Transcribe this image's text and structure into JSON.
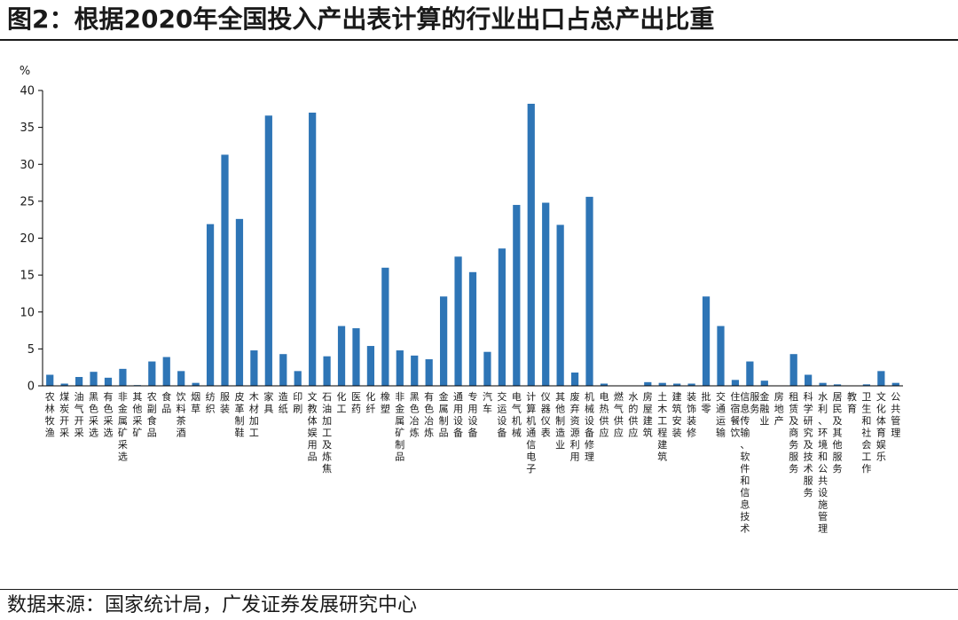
{
  "title": "图2：根据2020年全国投入产出表计算的行业出口占总产出比重",
  "source": "数据来源：国家统计局，广发证券发展研究中心",
  "colors": {
    "bar": "#2E75B6",
    "axis": "#000000",
    "text": "#1a1a1a"
  },
  "chart_data": {
    "type": "bar",
    "title": "",
    "xlabel": "",
    "ylabel": "%",
    "ylim": [
      0,
      40
    ],
    "yticks": [
      0,
      5,
      10,
      15,
      20,
      25,
      30,
      35,
      40
    ],
    "grid": false,
    "legend": "none",
    "categories": [
      "农林牧渔",
      "煤炭开采",
      "油气开采",
      "黑色采选",
      "有色采选",
      "非金属矿采选",
      "其他采矿",
      "农副食品",
      "食品",
      "饮料茶酒",
      "烟草",
      "纺织",
      "服装",
      "皮革制鞋",
      "木材加工",
      "家具",
      "造纸",
      "印刷",
      "文教体娱用品",
      "石油加工及炼焦",
      "化工",
      "医药",
      "化纤",
      "橡塑",
      "非金属矿制品",
      "黑色冶炼",
      "有色冶炼",
      "金属制品",
      "通用设备",
      "专用设备",
      "汽车",
      "交运设备",
      "电气机械",
      "计算机通信电子",
      "仪器仪表",
      "其他制造业",
      "废弃资源利用",
      "机械设备修理",
      "电热供应",
      "燃气供应",
      "水的供应",
      "房屋建筑",
      "土木工程建筑",
      "建筑安装",
      "装饰装修",
      "批零",
      "交通运输",
      "住宿餐饮",
      "信息传输、软件和信息技术服务",
      "金融业",
      "房地产",
      "租赁及商务服务",
      "科学研究及技术服务",
      "水利、环境和公共设施管理",
      "居民及其他服务",
      "教育",
      "卫生和社会工作",
      "文化体育娱乐",
      "公共管理"
    ],
    "values": [
      1.5,
      0.3,
      1.2,
      1.9,
      1.1,
      2.3,
      0.1,
      3.3,
      3.9,
      2.0,
      0.4,
      21.9,
      31.3,
      22.6,
      4.8,
      36.6,
      4.3,
      2.0,
      37.0,
      4.0,
      8.1,
      7.8,
      5.4,
      16.0,
      4.8,
      4.1,
      3.6,
      12.1,
      17.5,
      15.4,
      4.6,
      18.6,
      24.5,
      38.2,
      24.8,
      21.8,
      1.8,
      25.6,
      0.3,
      0.0,
      0.0,
      0.5,
      0.4,
      0.3,
      0.3,
      12.1,
      8.1,
      0.8,
      3.3,
      0.7,
      0.0,
      4.3,
      1.5,
      0.4,
      0.2,
      0.0,
      0.2,
      2.0,
      0.4
    ]
  }
}
